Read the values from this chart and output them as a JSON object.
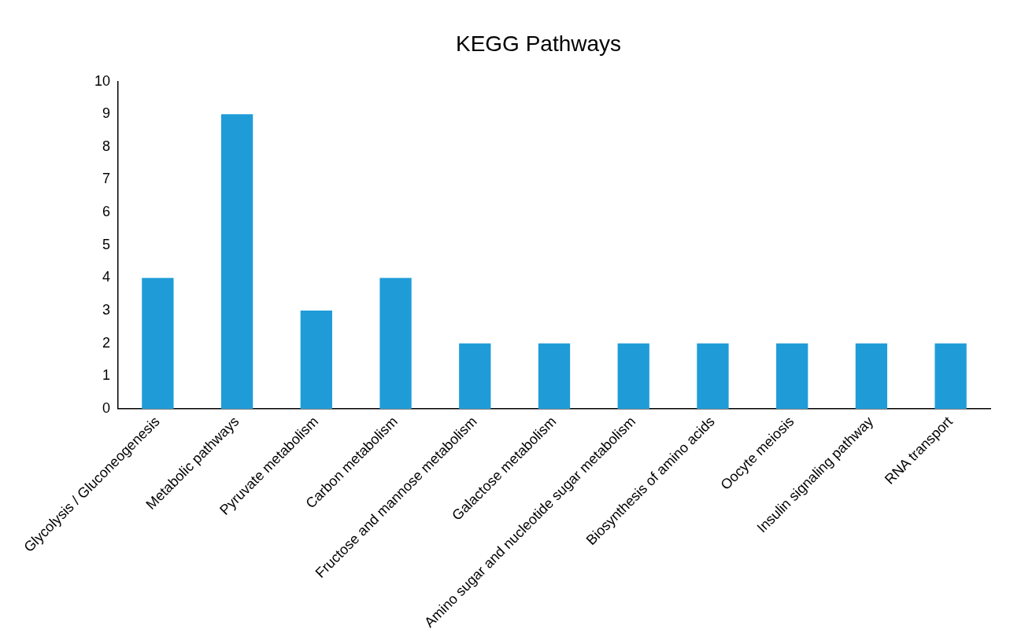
{
  "chart_data": {
    "type": "bar",
    "title": "KEGG Pathways",
    "categories": [
      "Glycolysis / Gluconeogenesis",
      "Metabolic pathways",
      "Pyruvate metabolism",
      "Carbon metabolism",
      "Fructose and mannose metabolism",
      "Galactose metabolism",
      "Amino sugar and nucleotide sugar metabolism",
      "Biosynthesis of amino acids",
      "Oocyte meiosis",
      "Insulin signaling pathway",
      "RNA transport"
    ],
    "values": [
      4,
      9,
      3,
      4,
      2,
      2,
      2,
      2,
      2,
      2,
      2
    ],
    "color": "#1f9cd8",
    "ylim": [
      0,
      10
    ],
    "yticks": [
      0,
      1,
      2,
      3,
      4,
      5,
      6,
      7,
      8,
      9,
      10
    ],
    "grid": false,
    "legend": false
  }
}
